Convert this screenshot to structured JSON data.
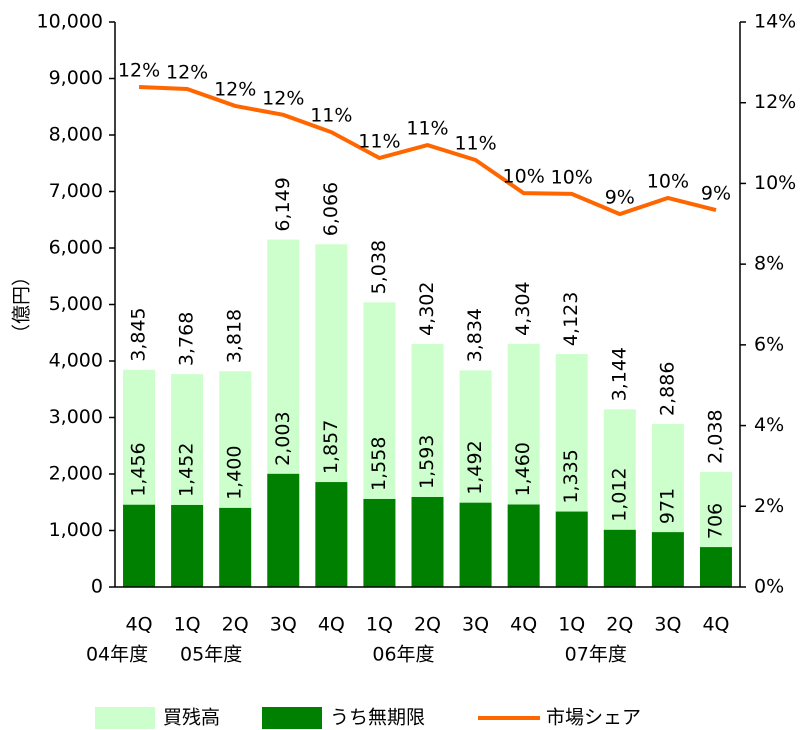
{
  "chart_data": {
    "type": "bar-line",
    "y_label": "（億円）",
    "categories": [
      "4Q",
      "1Q",
      "2Q",
      "3Q",
      "4Q",
      "1Q",
      "2Q",
      "3Q",
      "4Q",
      "1Q",
      "2Q",
      "3Q",
      "4Q"
    ],
    "category_groups": [
      "04年度",
      "05年度",
      null,
      null,
      null,
      "06年度",
      null,
      null,
      null,
      "07年度",
      null,
      null,
      null
    ],
    "series": [
      {
        "name": "買残高",
        "color": "#ccffcc",
        "values": [
          3845,
          3768,
          3818,
          6149,
          6066,
          5038,
          4302,
          3834,
          4304,
          4123,
          3144,
          2886,
          2038
        ],
        "value_labels": [
          "3,845",
          "3,768",
          "3,818",
          "6,149",
          "6,066",
          "5,038",
          "4,302",
          "3,834",
          "4,304",
          "4,123",
          "3,144",
          "2,886",
          "2,038"
        ]
      },
      {
        "name": "うち無期限",
        "color": "#008000",
        "values": [
          1456,
          1452,
          1400,
          2003,
          1857,
          1558,
          1593,
          1492,
          1460,
          1335,
          1012,
          971,
          706
        ],
        "value_labels": [
          "1,456",
          "1,452",
          "1,400",
          "2,003",
          "1,857",
          "1,558",
          "1,593",
          "1,492",
          "1,460",
          "1,335",
          "1,012",
          "971",
          "706"
        ]
      },
      {
        "name": "市場シェア",
        "color": "#ff6600",
        "axis": "y2",
        "values": [
          12.39,
          12.34,
          11.92,
          11.7,
          11.27,
          10.63,
          10.95,
          10.58,
          9.76,
          9.74,
          9.24,
          9.64,
          9.34
        ],
        "value_labels": [
          "12%",
          "12%",
          "12%",
          "12%",
          "11%",
          "11%",
          "11%",
          "11%",
          "10%",
          "10%",
          "9%",
          "10%",
          "9%"
        ]
      }
    ],
    "ylim": [
      0,
      10000
    ],
    "yticks": [
      0,
      {
        "value": 1000,
        "label": "1,000"
      },
      {
        "value": 2000,
        "label": "2,000"
      },
      {
        "value": 3000,
        "label": "3,000"
      },
      {
        "value": 4000,
        "label": "4,000"
      },
      {
        "value": 5000,
        "label": "5,000"
      },
      {
        "value": 6000,
        "label": "6,000"
      },
      {
        "value": 7000,
        "label": "7,000"
      },
      {
        "value": 8000,
        "label": "8,000"
      },
      {
        "value": 9000,
        "label": "9,000"
      },
      {
        "value": 10000,
        "label": "10,000"
      }
    ],
    "y2lim": [
      0,
      14
    ],
    "y2ticks": [
      {
        "value": 0,
        "label": "0%"
      },
      {
        "value": 2,
        "label": "2%"
      },
      {
        "value": 4,
        "label": "4%"
      },
      {
        "value": 6,
        "label": "6%"
      },
      {
        "value": 8,
        "label": "8%"
      },
      {
        "value": 10,
        "label": "10%"
      },
      {
        "value": 12,
        "label": "12%"
      },
      {
        "value": 14,
        "label": "14%"
      }
    ],
    "grid": false,
    "legend": "bottom"
  }
}
